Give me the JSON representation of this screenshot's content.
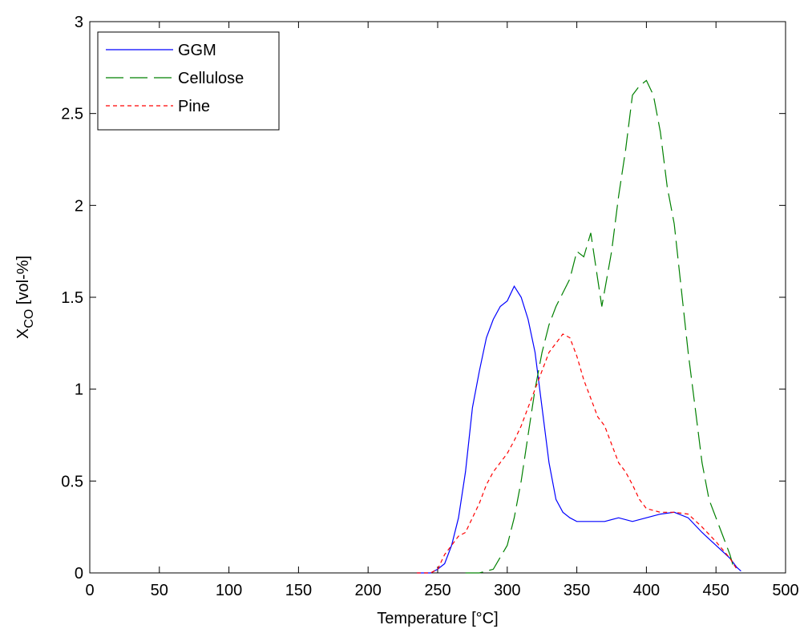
{
  "chart_data": {
    "type": "line",
    "xlabel": "Temperature [°C]",
    "ylabel": [
      "X",
      "CO",
      " [vol-%]"
    ],
    "xlim": [
      0,
      500
    ],
    "xticks": [
      0,
      50,
      100,
      150,
      200,
      250,
      300,
      350,
      400,
      450,
      500
    ],
    "ylim": [
      0,
      3
    ],
    "yticks": [
      0,
      0.5,
      1,
      1.5,
      2,
      2.5,
      3
    ],
    "legend": "upper-left",
    "series": [
      {
        "name": "GGM",
        "color": "#0000ff",
        "dash": "solid",
        "x": [
          235,
          245,
          250,
          255,
          260,
          265,
          270,
          275,
          280,
          285,
          290,
          295,
          300,
          305,
          310,
          315,
          320,
          325,
          330,
          335,
          340,
          345,
          350,
          360,
          370,
          380,
          390,
          400,
          410,
          420,
          430,
          440,
          450,
          460,
          465,
          468
        ],
        "values": [
          0,
          0,
          0.02,
          0.05,
          0.15,
          0.3,
          0.55,
          0.9,
          1.1,
          1.28,
          1.38,
          1.45,
          1.48,
          1.56,
          1.5,
          1.38,
          1.2,
          0.9,
          0.6,
          0.4,
          0.33,
          0.3,
          0.28,
          0.28,
          0.28,
          0.3,
          0.28,
          0.3,
          0.32,
          0.33,
          0.3,
          0.22,
          0.15,
          0.08,
          0.03,
          0.01
        ]
      },
      {
        "name": "Cellulose",
        "color": "#008000",
        "dash": "long",
        "x": [
          270,
          280,
          290,
          300,
          305,
          310,
          315,
          320,
          325,
          330,
          335,
          345,
          350,
          355,
          360,
          365,
          368,
          375,
          380,
          385,
          390,
          395,
          400,
          405,
          410,
          415,
          420,
          425,
          430,
          435,
          440,
          445,
          450,
          455,
          460,
          463
        ],
        "values": [
          0,
          0,
          0.02,
          0.15,
          0.3,
          0.5,
          0.75,
          1.0,
          1.2,
          1.35,
          1.45,
          1.6,
          1.75,
          1.72,
          1.85,
          1.6,
          1.45,
          1.75,
          2.05,
          2.3,
          2.6,
          2.65,
          2.68,
          2.6,
          2.4,
          2.1,
          1.9,
          1.55,
          1.2,
          0.9,
          0.6,
          0.4,
          0.3,
          0.2,
          0.1,
          0.02
        ]
      },
      {
        "name": "Pine",
        "color": "#ff0000",
        "dash": "short",
        "x": [
          235,
          245,
          250,
          255,
          260,
          265,
          270,
          275,
          280,
          285,
          290,
          295,
          300,
          305,
          310,
          315,
          320,
          325,
          330,
          335,
          340,
          345,
          350,
          355,
          360,
          365,
          370,
          375,
          380,
          385,
          390,
          395,
          400,
          410,
          420,
          430,
          440,
          450,
          460,
          465
        ],
        "values": [
          0,
          0,
          0.02,
          0.1,
          0.15,
          0.2,
          0.22,
          0.3,
          0.38,
          0.48,
          0.55,
          0.6,
          0.65,
          0.72,
          0.8,
          0.9,
          1.0,
          1.1,
          1.2,
          1.25,
          1.3,
          1.28,
          1.18,
          1.05,
          0.95,
          0.85,
          0.8,
          0.7,
          0.6,
          0.55,
          0.48,
          0.4,
          0.35,
          0.33,
          0.33,
          0.32,
          0.25,
          0.17,
          0.08,
          0.02
        ]
      }
    ]
  }
}
